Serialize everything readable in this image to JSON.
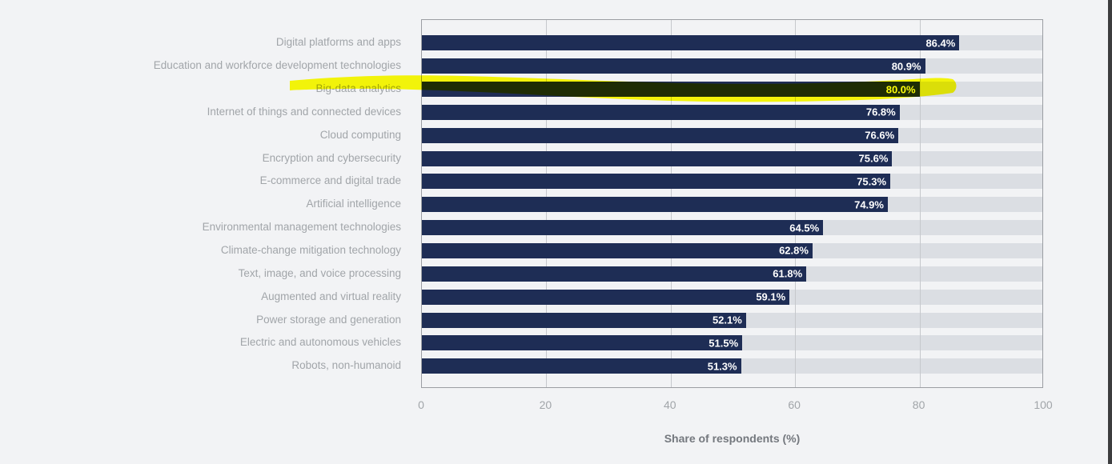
{
  "page": {
    "background_color": "#f2f3f5",
    "right_edge_color": "#3c3c3e"
  },
  "chart_data": {
    "type": "bar",
    "orientation": "horizontal",
    "title": "",
    "xlabel": "Share of respondents (%)",
    "ylabel": "",
    "xlim": [
      0,
      100
    ],
    "x_ticks": [
      "0",
      "20",
      "40",
      "60",
      "80",
      "100"
    ],
    "grid": "vertical",
    "legend": "none",
    "bar_color": "#1e2d55",
    "track_color": "#dbdee3",
    "value_label_color": "#ffffff",
    "categories": [
      "Digital platforms and apps",
      "Education and workforce development technologies",
      "Big-data analytics",
      "Internet of things and connected devices",
      "Cloud computing",
      "Encryption and cybersecurity",
      "E-commerce and digital trade",
      "Artificial intelligence",
      "Environmental management technologies",
      "Climate-change mitigation technology",
      "Text, image, and voice processing",
      "Augmented and virtual reality",
      "Power storage and generation",
      "Electric and autonomous vehicles",
      "Robots, non-humanoid"
    ],
    "values": [
      86.4,
      80.9,
      80.0,
      76.8,
      76.6,
      75.6,
      75.3,
      74.9,
      64.5,
      62.8,
      61.8,
      59.1,
      52.1,
      51.5,
      51.3
    ],
    "value_labels": [
      "86.4%",
      "80.9%",
      "80.0%",
      "76.8%",
      "76.6%",
      "75.6%",
      "75.3%",
      "74.9%",
      "64.5%",
      "62.8%",
      "61.8%",
      "59.1%",
      "52.1%",
      "51.5%",
      "51.3%"
    ],
    "annotation": {
      "kind": "highlighter-stroke",
      "highlighted_category": "Big-data analytics",
      "highlighted_value_label": "80.0%",
      "color": "#ffff00"
    }
  }
}
